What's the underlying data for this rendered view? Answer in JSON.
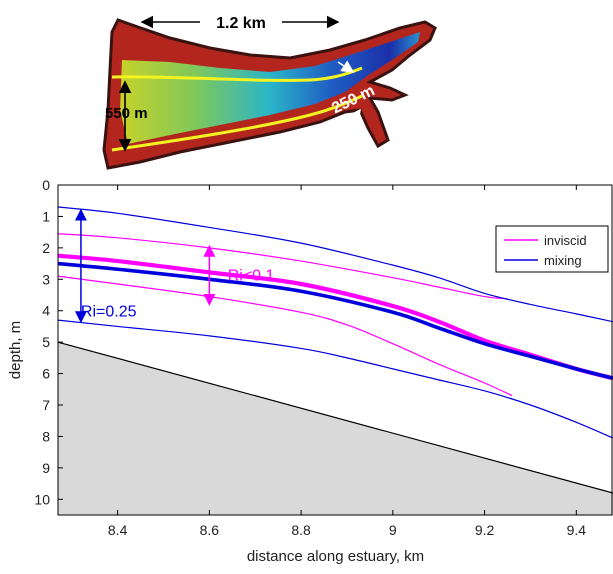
{
  "inset_map": {
    "length_label": "1.2 km",
    "width_label": "550 m",
    "throat_label": "250 m",
    "colors": {
      "deep": "#1b2fa8",
      "mid": "#27b7c8",
      "shallow": "#d7d21c",
      "bank": "#b3261e",
      "banks_dark": "#3a1210",
      "centerline": "#f3f322"
    }
  },
  "chart_data": {
    "type": "line",
    "xlabel": "distance along estuary, km",
    "ylabel": "depth, m",
    "xlim": [
      8.27,
      9.48
    ],
    "ylim": [
      10.5,
      0
    ],
    "y_inverted": true,
    "x_ticks": [
      "8.4",
      "8.6",
      "8.8",
      "9",
      "9.2",
      "9.4"
    ],
    "x_tick_values": [
      8.4,
      8.6,
      8.8,
      9.0,
      9.2,
      9.4
    ],
    "y_ticks": [
      "0",
      "1",
      "2",
      "3",
      "4",
      "5",
      "6",
      "7",
      "8",
      "9",
      "10"
    ],
    "y_tick_values": [
      0,
      1,
      2,
      3,
      4,
      5,
      6,
      7,
      8,
      9,
      10
    ],
    "grid": false,
    "legend_position": "top-right",
    "legend": [
      {
        "label": "inviscid",
        "color": "#ff00ff"
      },
      {
        "label": "mixing",
        "color": "#0000dd"
      }
    ],
    "bottom": {
      "x": [
        8.27,
        9.48
      ],
      "y": [
        5.0,
        9.8
      ],
      "fill": "#d9d9d9"
    },
    "series": [
      {
        "name": "inviscid",
        "role": "upper",
        "color": "#ff00ff",
        "width": 1.2,
        "x": [
          8.27,
          8.4,
          8.6,
          8.8,
          9.0,
          9.1,
          9.2,
          9.25
        ],
        "y": [
          1.55,
          1.68,
          2.0,
          2.42,
          2.95,
          3.25,
          3.55,
          3.62
        ]
      },
      {
        "name": "inviscid",
        "role": "interface",
        "color": "#ff00ff",
        "width": 4.2,
        "x": [
          8.27,
          8.4,
          8.6,
          8.8,
          9.0,
          9.1,
          9.2,
          9.3,
          9.4,
          9.48
        ],
        "y": [
          2.25,
          2.42,
          2.78,
          3.15,
          3.85,
          4.35,
          4.95,
          5.4,
          5.85,
          6.15
        ]
      },
      {
        "name": "inviscid",
        "role": "lower",
        "color": "#ff00ff",
        "width": 1.2,
        "x": [
          8.27,
          8.4,
          8.6,
          8.8,
          8.9,
          9.0,
          9.1,
          9.2,
          9.26
        ],
        "y": [
          2.9,
          3.15,
          3.55,
          4.05,
          4.45,
          5.05,
          5.7,
          6.3,
          6.7
        ]
      },
      {
        "name": "mixing",
        "role": "upper",
        "color": "#0000dd",
        "width": 1.2,
        "x": [
          8.27,
          8.4,
          8.6,
          8.8,
          9.0,
          9.1,
          9.2,
          9.3,
          9.4,
          9.48
        ],
        "y": [
          0.7,
          0.9,
          1.35,
          1.85,
          2.55,
          2.95,
          3.45,
          3.8,
          4.1,
          4.35
        ]
      },
      {
        "name": "mixing",
        "role": "interface",
        "color": "#0000dd",
        "width": 3.6,
        "x": [
          8.27,
          8.4,
          8.6,
          8.8,
          9.0,
          9.1,
          9.2,
          9.3,
          9.4,
          9.48
        ],
        "y": [
          2.5,
          2.68,
          3.0,
          3.38,
          4.05,
          4.55,
          5.05,
          5.45,
          5.85,
          6.15
        ]
      },
      {
        "name": "mixing",
        "role": "lower",
        "color": "#0000dd",
        "width": 1.2,
        "x": [
          8.27,
          8.4,
          8.6,
          8.8,
          8.9,
          9.0,
          9.1,
          9.2,
          9.3,
          9.4,
          9.48
        ],
        "y": [
          4.3,
          4.5,
          4.8,
          5.2,
          5.5,
          5.85,
          6.2,
          6.55,
          7.0,
          7.55,
          8.05
        ]
      }
    ],
    "annotations": [
      {
        "text": "Ri<0.1",
        "color": "#ff00ff",
        "x": 8.64,
        "y": 2.85,
        "arrow_x": 8.6,
        "arrow_y": [
          1.95,
          3.8
        ]
      },
      {
        "text": "Ri=0.25",
        "color": "#0000dd",
        "x": 8.32,
        "y": 4.0,
        "arrow_x": 8.32,
        "arrow_y": [
          0.8,
          4.35
        ]
      }
    ]
  }
}
